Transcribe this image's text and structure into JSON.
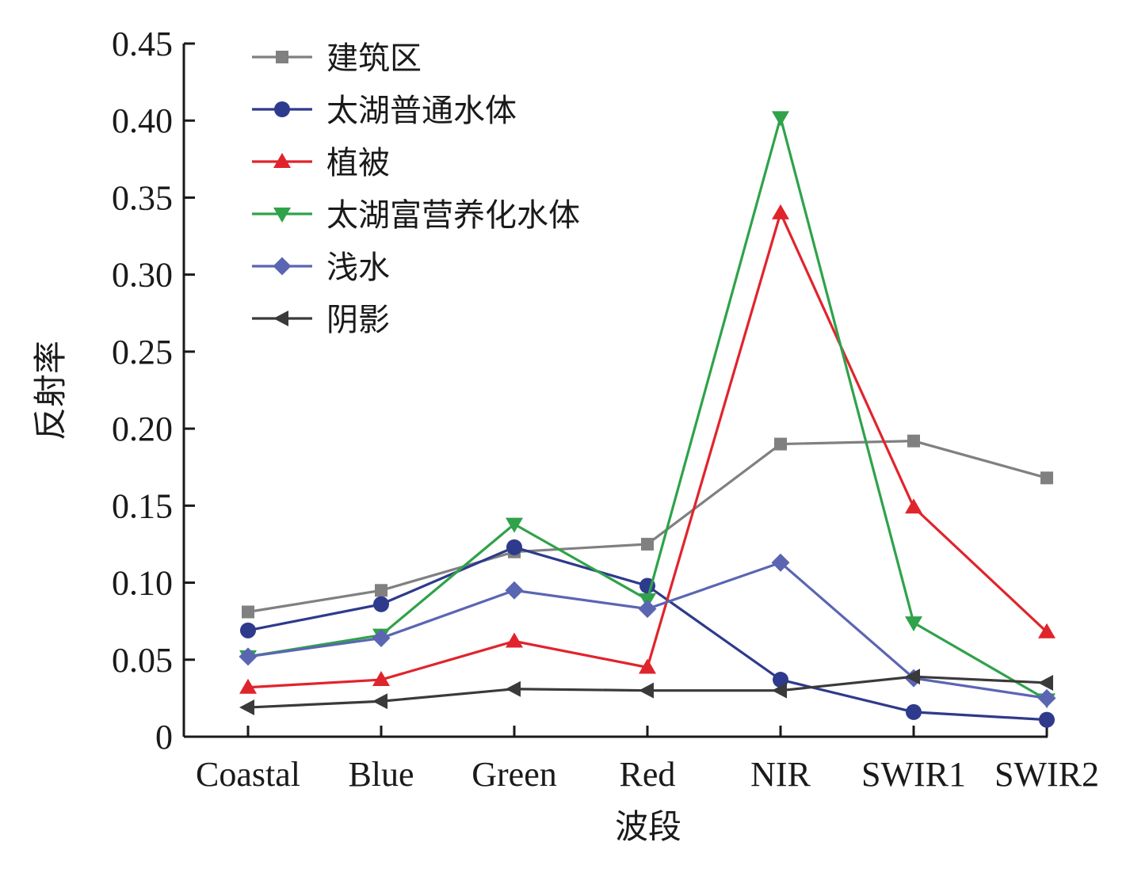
{
  "chart_data": {
    "type": "line",
    "xlabel": "波段",
    "ylabel": "反射率",
    "categories": [
      "Coastal",
      "Blue",
      "Green",
      "Red",
      "NIR",
      "SWIR1",
      "SWIR2"
    ],
    "ylim": [
      0,
      0.45
    ],
    "yticks": [
      0,
      0.05,
      0.1,
      0.15,
      0.2,
      0.25,
      0.3,
      0.35,
      0.4,
      0.45
    ],
    "ytick_labels": [
      "0",
      "0.05",
      "0.10",
      "0.15",
      "0.20",
      "0.25",
      "0.30",
      "0.35",
      "0.40",
      "0.45"
    ],
    "grid": false,
    "legend_position": "top-left",
    "series": [
      {
        "name": "建筑区",
        "color": "#808080",
        "marker": "square",
        "values": [
          0.081,
          0.095,
          0.12,
          0.125,
          0.19,
          0.192,
          0.168
        ]
      },
      {
        "name": "太湖普通水体",
        "color": "#2e3a8c",
        "marker": "circle",
        "values": [
          0.069,
          0.086,
          0.123,
          0.098,
          0.037,
          0.016,
          0.011
        ]
      },
      {
        "name": "植被",
        "color": "#e0242c",
        "marker": "triangle-up",
        "values": [
          0.032,
          0.037,
          0.062,
          0.045,
          0.34,
          0.149,
          0.068
        ]
      },
      {
        "name": "太湖富营养化水体",
        "color": "#2fa24a",
        "marker": "triangle-down",
        "values": [
          0.052,
          0.066,
          0.138,
          0.089,
          0.402,
          0.074,
          0.024
        ]
      },
      {
        "name": "浅水",
        "color": "#5a66b2",
        "marker": "diamond",
        "values": [
          0.052,
          0.064,
          0.095,
          0.083,
          0.113,
          0.038,
          0.025
        ]
      },
      {
        "name": "阴影",
        "color": "#3a3a3a",
        "marker": "triangle-left",
        "values": [
          0.019,
          0.023,
          0.031,
          0.03,
          0.03,
          0.039,
          0.035
        ]
      }
    ]
  }
}
